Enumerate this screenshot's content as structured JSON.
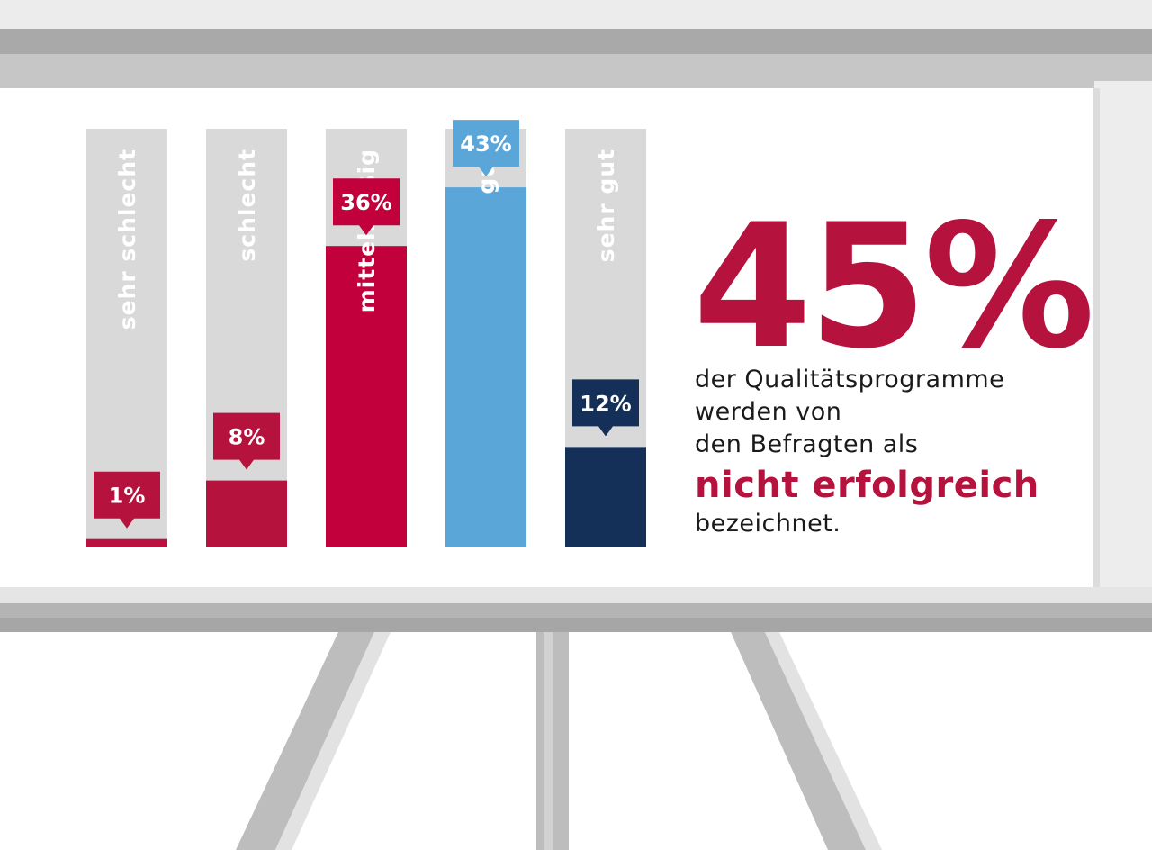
{
  "chart_data": {
    "type": "bar",
    "categories": [
      "sehr schlecht",
      "schlecht",
      "mittelmäßig",
      "gut",
      "sehr gut"
    ],
    "values": [
      1,
      8,
      36,
      43,
      12
    ],
    "value_labels": [
      "1%",
      "8%",
      "36%",
      "43%",
      "12%"
    ],
    "unit": "%",
    "ylim": [
      0,
      100
    ],
    "grid": false,
    "orientation": "vertical",
    "category_label_orientation": "rotated-vertical",
    "colors": {
      "track": "#d9d9d9",
      "bars": [
        "#bb1040",
        "#b5133d",
        "#c1003c",
        "#5ba6d9",
        "#142f58"
      ],
      "value_badges": [
        "#b5133d",
        "#b5133d",
        "#c1003c",
        "#5ba6d9",
        "#142f58"
      ]
    }
  },
  "headline": {
    "percent": "45%",
    "lines": [
      "der Qualitätsprogramme",
      "werden von",
      "den Befragten als"
    ],
    "highlight": "nicht erfolgreich",
    "last_line": "bezeichnet.",
    "accent_color": "#b5133d"
  }
}
